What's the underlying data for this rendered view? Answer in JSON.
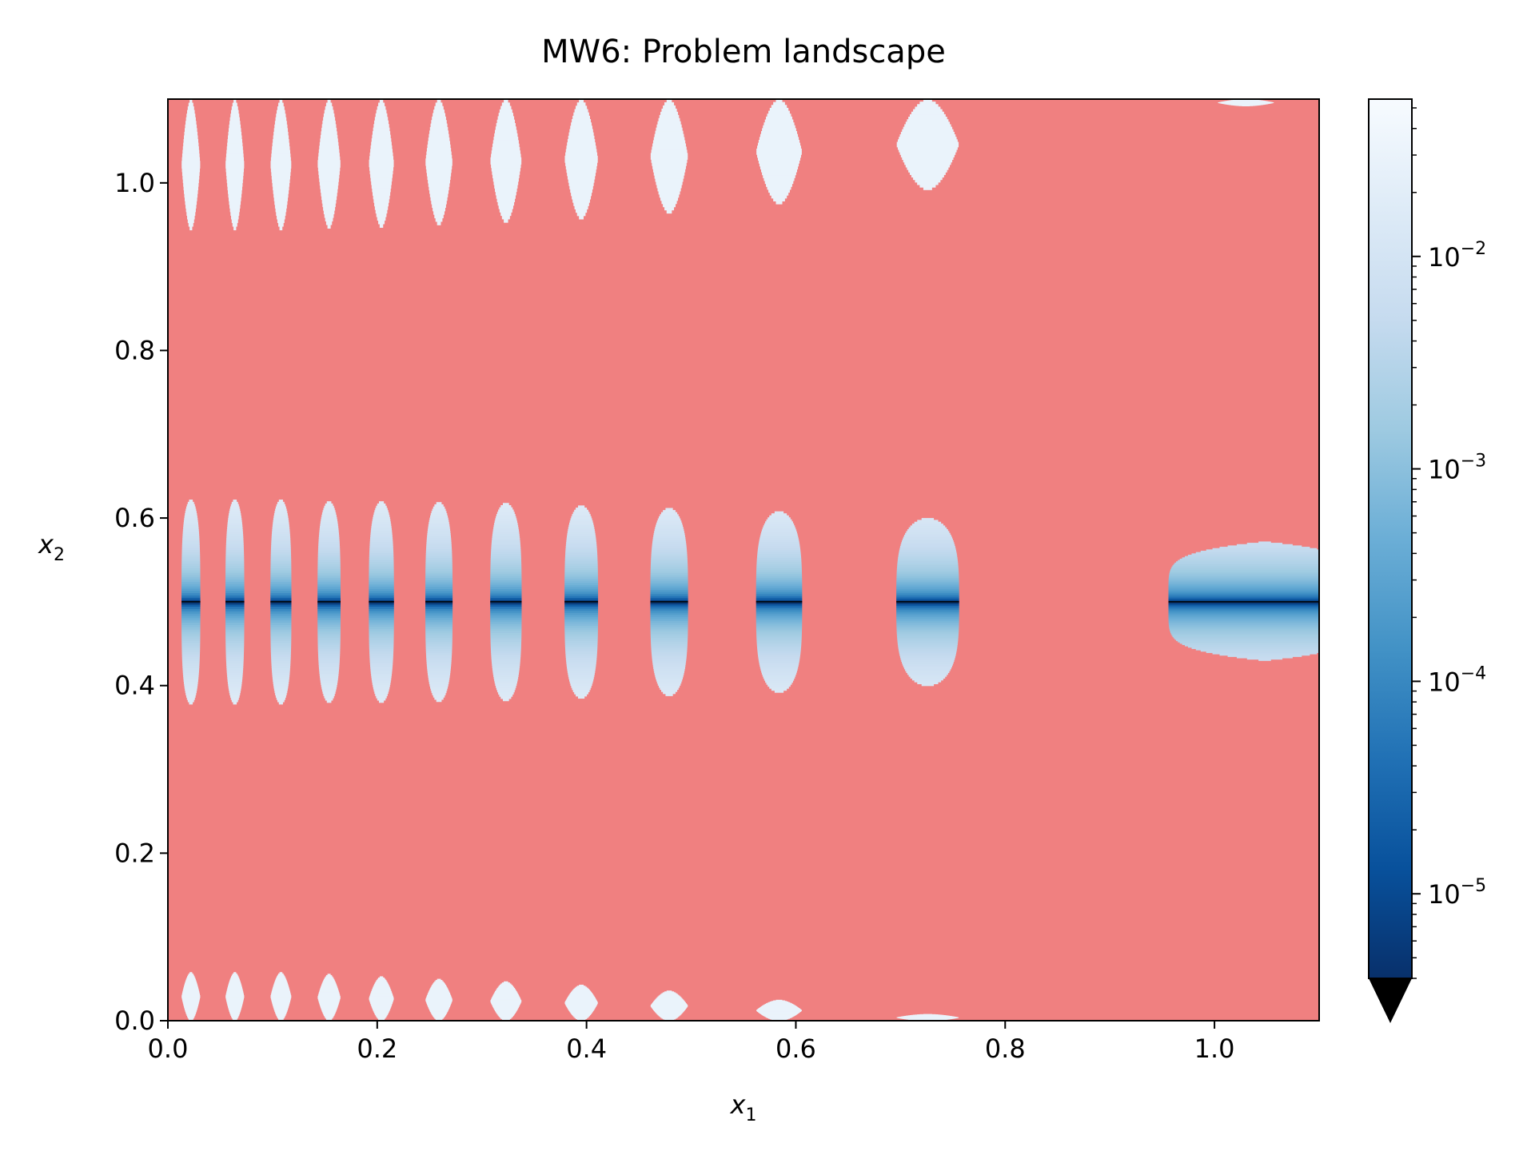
{
  "chart_data": {
    "type": "heatmap",
    "title": "MW6: Problem landscape",
    "xlabel": {
      "base": "x",
      "sub": "1"
    },
    "ylabel": {
      "base": "x",
      "sub": "2"
    },
    "xlim": [
      0,
      1.1
    ],
    "ylim": [
      0,
      1.1
    ],
    "x_ticks": [
      {
        "value": 0.0,
        "label": "0.0"
      },
      {
        "value": 0.2,
        "label": "0.2"
      },
      {
        "value": 0.4,
        "label": "0.4"
      },
      {
        "value": 0.6,
        "label": "0.6"
      },
      {
        "value": 0.8,
        "label": "0.8"
      },
      {
        "value": 1.0,
        "label": "1.0"
      }
    ],
    "y_ticks": [
      {
        "value": 0.0,
        "label": "0.0"
      },
      {
        "value": 0.2,
        "label": "0.2"
      },
      {
        "value": 0.4,
        "label": "0.4"
      },
      {
        "value": 0.6,
        "label": "0.6"
      },
      {
        "value": 0.8,
        "label": "0.8"
      },
      {
        "value": 1.0,
        "label": "1.0"
      }
    ],
    "infeasible_color": "#f08080",
    "optimum_line": {
      "y": 0.5,
      "color": "#000000"
    },
    "colorbar": {
      "scale": "log",
      "colormap": "Blues_r",
      "range": [
        4e-06,
        0.055
      ],
      "extend": "min",
      "ticks": [
        {
          "value": 1e-05,
          "base": "10",
          "exp": "−5"
        },
        {
          "value": 0.0001,
          "base": "10",
          "exp": "−4"
        },
        {
          "value": 0.001,
          "base": "10",
          "exp": "−3"
        },
        {
          "value": 0.01,
          "base": "10",
          "exp": "−2"
        }
      ],
      "stops": [
        "#08306b",
        "#08519c",
        "#2171b5",
        "#4292c6",
        "#6baed6",
        "#9ecae1",
        "#c6dbef",
        "#deebf7",
        "#f7fbff"
      ]
    },
    "feasible_regions": [
      {
        "x_center": 0.022,
        "x_half_width": 0.009,
        "y_bands": [
          [
            0.0,
            0.058
          ],
          [
            0.378,
            0.622
          ],
          [
            0.944,
            1.1
          ]
        ]
      },
      {
        "x_center": 0.064,
        "x_half_width": 0.009,
        "y_bands": [
          [
            0.0,
            0.058
          ],
          [
            0.378,
            0.622
          ],
          [
            0.944,
            1.1
          ]
        ]
      },
      {
        "x_center": 0.108,
        "x_half_width": 0.01,
        "y_bands": [
          [
            0.0,
            0.058
          ],
          [
            0.378,
            0.622
          ],
          [
            0.944,
            1.1
          ]
        ]
      },
      {
        "x_center": 0.154,
        "x_half_width": 0.011,
        "y_bands": [
          [
            0.0,
            0.056
          ],
          [
            0.38,
            0.62
          ],
          [
            0.946,
            1.1
          ]
        ]
      },
      {
        "x_center": 0.204,
        "x_half_width": 0.012,
        "y_bands": [
          [
            0.0,
            0.053
          ],
          [
            0.38,
            0.62
          ],
          [
            0.947,
            1.1
          ]
        ]
      },
      {
        "x_center": 0.259,
        "x_half_width": 0.013,
        "y_bands": [
          [
            0.0,
            0.05
          ],
          [
            0.381,
            0.619
          ],
          [
            0.95,
            1.1
          ]
        ]
      },
      {
        "x_center": 0.323,
        "x_half_width": 0.015,
        "y_bands": [
          [
            0.0,
            0.047
          ],
          [
            0.382,
            0.618
          ],
          [
            0.953,
            1.1
          ]
        ]
      },
      {
        "x_center": 0.395,
        "x_half_width": 0.016,
        "y_bands": [
          [
            0.0,
            0.043
          ],
          [
            0.385,
            0.615
          ],
          [
            0.957,
            1.1
          ]
        ]
      },
      {
        "x_center": 0.479,
        "x_half_width": 0.018,
        "y_bands": [
          [
            0.0,
            0.036
          ],
          [
            0.388,
            0.612
          ],
          [
            0.964,
            1.1
          ]
        ]
      },
      {
        "x_center": 0.584,
        "x_half_width": 0.022,
        "y_bands": [
          [
            0.0,
            0.025
          ],
          [
            0.392,
            0.608
          ],
          [
            0.975,
            1.1
          ]
        ]
      },
      {
        "x_center": 0.726,
        "x_half_width": 0.03,
        "y_bands": [
          [
            0.0,
            0.008
          ],
          [
            0.4,
            0.6
          ],
          [
            0.992,
            1.1
          ]
        ]
      },
      {
        "x_center": 1.048,
        "x_half_width": 0.092,
        "y_bands": [
          [
            0.43,
            0.572
          ]
        ]
      },
      {
        "x_center": 1.03,
        "x_half_width": 0.027,
        "y_bands": [
          [
            1.092,
            1.1
          ]
        ]
      }
    ]
  }
}
